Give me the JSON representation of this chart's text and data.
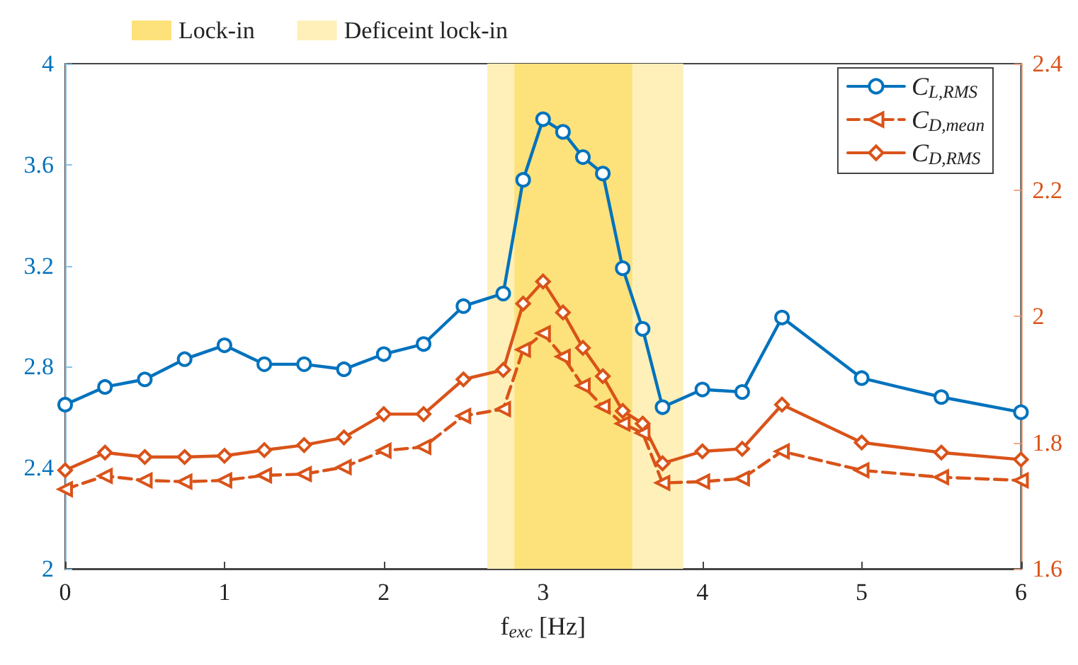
{
  "chart_data": {
    "type": "line",
    "xlabel": "f$_{exc}$ [Hz]",
    "xlim": [
      0,
      6
    ],
    "xticks": [
      0,
      1,
      2,
      3,
      4,
      5,
      6
    ],
    "ylim": [
      2,
      4
    ],
    "yticks": [
      2,
      2.4,
      2.8,
      3.2,
      3.6,
      4
    ],
    "y2lim": [
      1.6,
      2.4
    ],
    "y2ticks": [
      1.6,
      1.8,
      2,
      2.2,
      2.4
    ],
    "grid": false,
    "legend": "top right",
    "x": [
      0,
      0.25,
      0.5,
      0.75,
      1,
      1.25,
      1.5,
      1.75,
      2,
      2.25,
      2.5,
      2.75,
      2.875,
      3,
      3.125,
      3.25,
      3.375,
      3.5,
      3.625,
      3.75,
      4,
      4.25,
      4.5,
      5,
      5.5,
      6
    ],
    "series": [
      {
        "name": "C$_{L,RMS}$",
        "color": "#0072bd",
        "marker": "circle",
        "line_style": "solid",
        "values": [
          2.65,
          2.72,
          2.75,
          2.83,
          2.885,
          2.81,
          2.81,
          2.79,
          2.85,
          2.89,
          3.04,
          3.09,
          3.54,
          3.78,
          3.73,
          3.63,
          3.565,
          3.19,
          2.95,
          2.64,
          2.71,
          2.7,
          2.995,
          2.755,
          2.68,
          2.62
        ]
      },
      {
        "name": "C$_{D,mean}$",
        "color": "#d95319",
        "marker": "triangle",
        "line_style": "dashed",
        "axis": "y2",
        "x": [
          0,
          0.25,
          0.5,
          0.75,
          1,
          1.25,
          1.5,
          1.75,
          2,
          2.25,
          2.5,
          2.75,
          2.875,
          3,
          3.125,
          3.25,
          3.375,
          3.5,
          3.625,
          3.75,
          4,
          4.25,
          4.5,
          5,
          5.5,
          6
        ],
        "values": [
          1.726,
          1.747,
          1.74,
          1.738,
          1.74,
          1.748,
          1.75,
          1.761,
          1.787,
          1.793,
          1.842,
          1.853,
          1.947,
          1.973,
          1.936,
          1.89,
          1.857,
          1.83,
          1.815,
          1.736,
          1.738,
          1.743,
          1.786,
          1.756,
          1.745,
          1.74
        ]
      },
      {
        "name": "C$_{D,RMS}$",
        "color": "#d95319",
        "marker": "diamond",
        "line_style": "solid",
        "axis": "y2",
        "values": [
          1.756,
          1.784,
          1.777,
          1.777,
          1.779,
          1.788,
          1.796,
          1.808,
          1.845,
          1.845,
          1.9,
          1.915,
          2.02,
          2.055,
          2.006,
          1.95,
          1.905,
          1.85,
          1.83,
          1.767,
          1.786,
          1.79,
          1.86,
          1.8,
          1.784,
          1.773
        ]
      }
    ],
    "bands": [
      {
        "axis": "x",
        "from": 2.65,
        "to": 3.88,
        "label": "Deficeint lock-in",
        "color": "#fef0b8"
      },
      {
        "axis": "x",
        "from": 2.82,
        "to": 3.56,
        "label": "Lock-in",
        "color": "#fde17a"
      }
    ]
  }
}
